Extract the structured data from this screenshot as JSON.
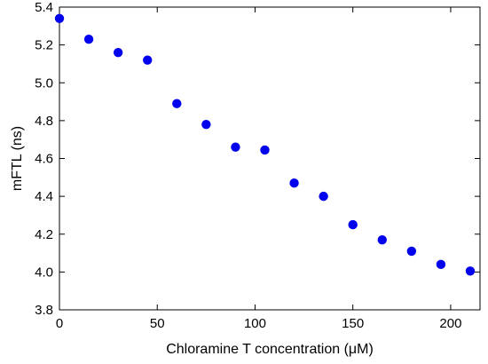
{
  "chart_data": {
    "type": "scatter",
    "title": "",
    "xlabel": "Chloramine T concentration (μM)",
    "ylabel": "mFTL (ns)",
    "xlim": [
      0,
      215
    ],
    "ylim": [
      3.8,
      5.4
    ],
    "xticks": [
      0,
      50,
      100,
      150,
      200
    ],
    "yticks": [
      3.8,
      4.0,
      4.2,
      4.4,
      4.6,
      4.8,
      5.0,
      5.2,
      5.4
    ],
    "xtick_labels": [
      "0",
      "50",
      "100",
      "150",
      "200"
    ],
    "ytick_labels": [
      "3.8",
      "4.0",
      "4.2",
      "4.4",
      "4.6",
      "4.8",
      "5.0",
      "5.2",
      "5.4"
    ],
    "grid": false,
    "marker_color": "#0000ee",
    "series": [
      {
        "x": [
          0,
          15,
          30,
          45,
          60,
          75,
          90,
          105,
          120,
          135,
          150,
          165,
          180,
          195,
          210
        ],
        "y": [
          5.34,
          5.23,
          5.16,
          5.12,
          4.89,
          4.78,
          4.66,
          4.645,
          4.47,
          4.4,
          4.25,
          4.17,
          4.11,
          4.04,
          4.005
        ]
      }
    ]
  }
}
